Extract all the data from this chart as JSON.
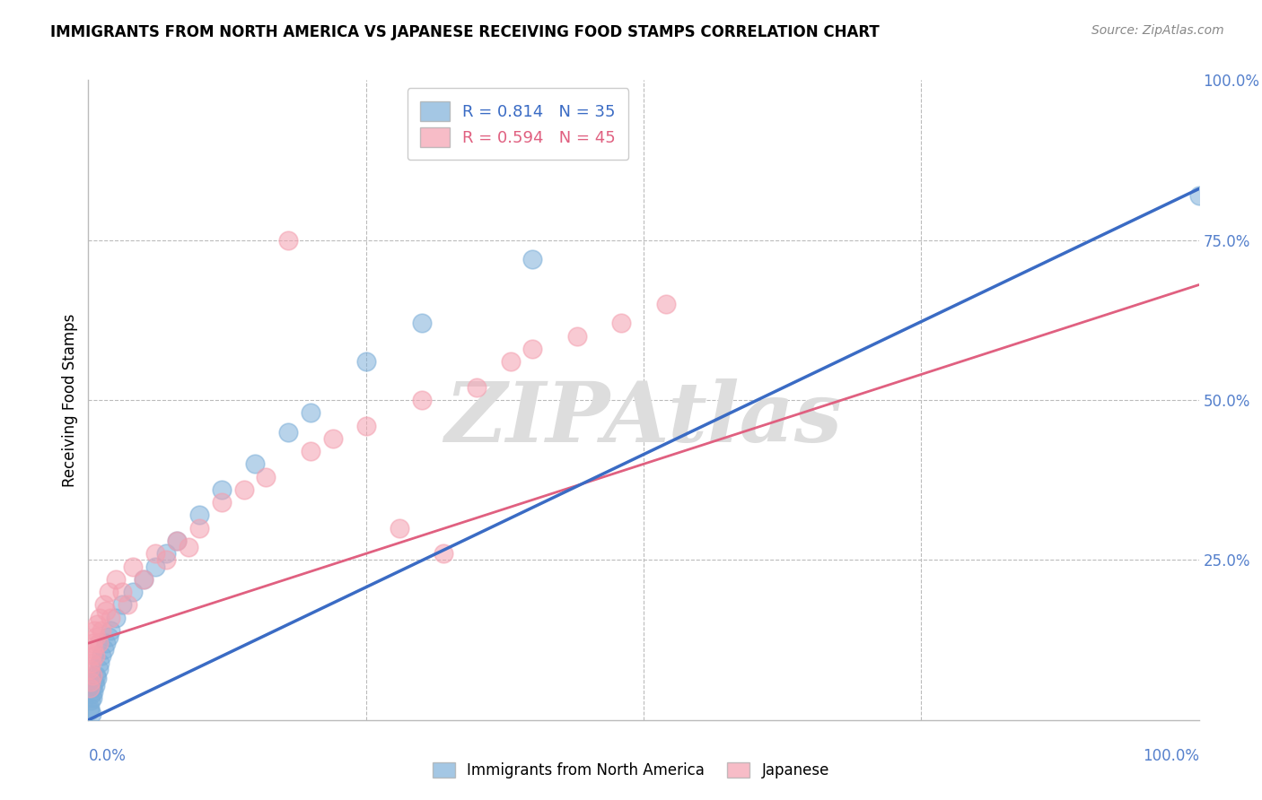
{
  "title": "IMMIGRANTS FROM NORTH AMERICA VS JAPANESE RECEIVING FOOD STAMPS CORRELATION CHART",
  "source": "Source: ZipAtlas.com",
  "ylabel": "Receiving Food Stamps",
  "legend_blue_r": "R = 0.814",
  "legend_blue_n": "N = 35",
  "legend_pink_r": "R = 0.594",
  "legend_pink_n": "N = 45",
  "legend_blue_label": "Immigrants from North America",
  "legend_pink_label": "Japanese",
  "blue_color": "#7EB0D9",
  "pink_color": "#F4A0B0",
  "blue_line_color": "#3A6BC4",
  "pink_line_color": "#E06080",
  "tick_color": "#5580CC",
  "watermark": "ZIPAtlas",
  "watermark_color": "#DDDDDD",
  "background_color": "#FFFFFF",
  "grid_color": "#BBBBBB",
  "axis_color": "#BBBBBB",
  "blue_scatter_x": [
    0.1,
    0.15,
    0.2,
    0.25,
    0.3,
    0.35,
    0.4,
    0.45,
    0.5,
    0.6,
    0.7,
    0.8,
    0.9,
    1.0,
    1.2,
    1.4,
    1.6,
    1.8,
    2.0,
    2.5,
    3.0,
    4.0,
    5.0,
    6.0,
    7.0,
    8.0,
    10.0,
    12.0,
    15.0,
    18.0,
    20.0,
    25.0,
    30.0,
    40.0,
    100.0
  ],
  "blue_scatter_y": [
    1.5,
    2.0,
    3.0,
    1.0,
    4.0,
    3.5,
    5.0,
    4.5,
    6.0,
    5.5,
    7.0,
    6.5,
    8.0,
    9.0,
    10.0,
    11.0,
    12.0,
    13.0,
    14.0,
    16.0,
    18.0,
    20.0,
    22.0,
    24.0,
    26.0,
    28.0,
    32.0,
    36.0,
    40.0,
    45.0,
    48.0,
    56.0,
    62.0,
    72.0,
    82.0
  ],
  "pink_scatter_x": [
    0.1,
    0.15,
    0.2,
    0.25,
    0.3,
    0.35,
    0.4,
    0.45,
    0.5,
    0.6,
    0.7,
    0.8,
    0.9,
    1.0,
    1.2,
    1.4,
    1.6,
    1.8,
    2.0,
    2.5,
    3.0,
    3.5,
    4.0,
    5.0,
    6.0,
    7.0,
    8.0,
    9.0,
    10.0,
    12.0,
    14.0,
    16.0,
    18.0,
    20.0,
    22.0,
    25.0,
    28.0,
    30.0,
    32.0,
    35.0,
    38.0,
    40.0,
    44.0,
    48.0,
    52.0
  ],
  "pink_scatter_y": [
    5.0,
    8.0,
    6.0,
    10.0,
    9.0,
    12.0,
    7.0,
    11.0,
    14.0,
    10.0,
    13.0,
    15.0,
    12.0,
    16.0,
    14.0,
    18.0,
    17.0,
    20.0,
    16.0,
    22.0,
    20.0,
    18.0,
    24.0,
    22.0,
    26.0,
    25.0,
    28.0,
    27.0,
    30.0,
    34.0,
    36.0,
    38.0,
    75.0,
    42.0,
    44.0,
    46.0,
    30.0,
    50.0,
    26.0,
    52.0,
    56.0,
    58.0,
    60.0,
    62.0,
    65.0
  ],
  "blue_line_x0": 0,
  "blue_line_y0": 0,
  "blue_line_x1": 100,
  "blue_line_y1": 83,
  "pink_line_x0": 0,
  "pink_line_y0": 12,
  "pink_line_x1": 100,
  "pink_line_y1": 68,
  "xlim": [
    0,
    100
  ],
  "ylim": [
    0,
    100
  ],
  "yticks": [
    0,
    25,
    50,
    75,
    100
  ],
  "ytick_labels": [
    "",
    "25.0%",
    "50.0%",
    "75.0%",
    "100.0%"
  ],
  "xtick_left_label": "0.0%",
  "xtick_right_label": "100.0%"
}
